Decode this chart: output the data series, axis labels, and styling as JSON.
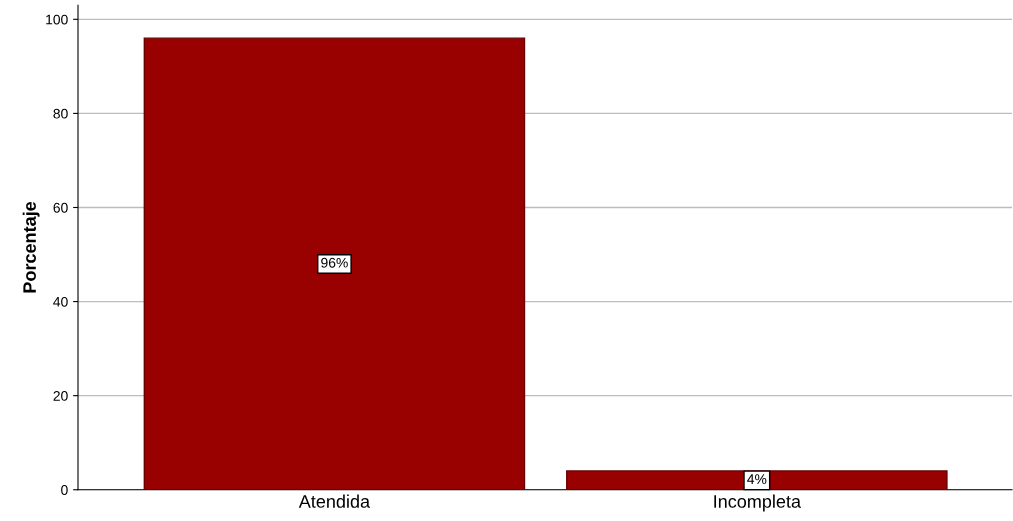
{
  "chart_data": {
    "type": "bar",
    "ylabel": "Porcentaje",
    "categories": [
      "Atendida",
      "Incompleta"
    ],
    "values": [
      96,
      4
    ],
    "value_labels": [
      "96%",
      "4%"
    ],
    "color": "#990000",
    "ylim": [
      0,
      103
    ],
    "yticks": [
      0,
      20,
      40,
      60,
      80,
      100
    ],
    "grid": "y",
    "legend": false
  }
}
